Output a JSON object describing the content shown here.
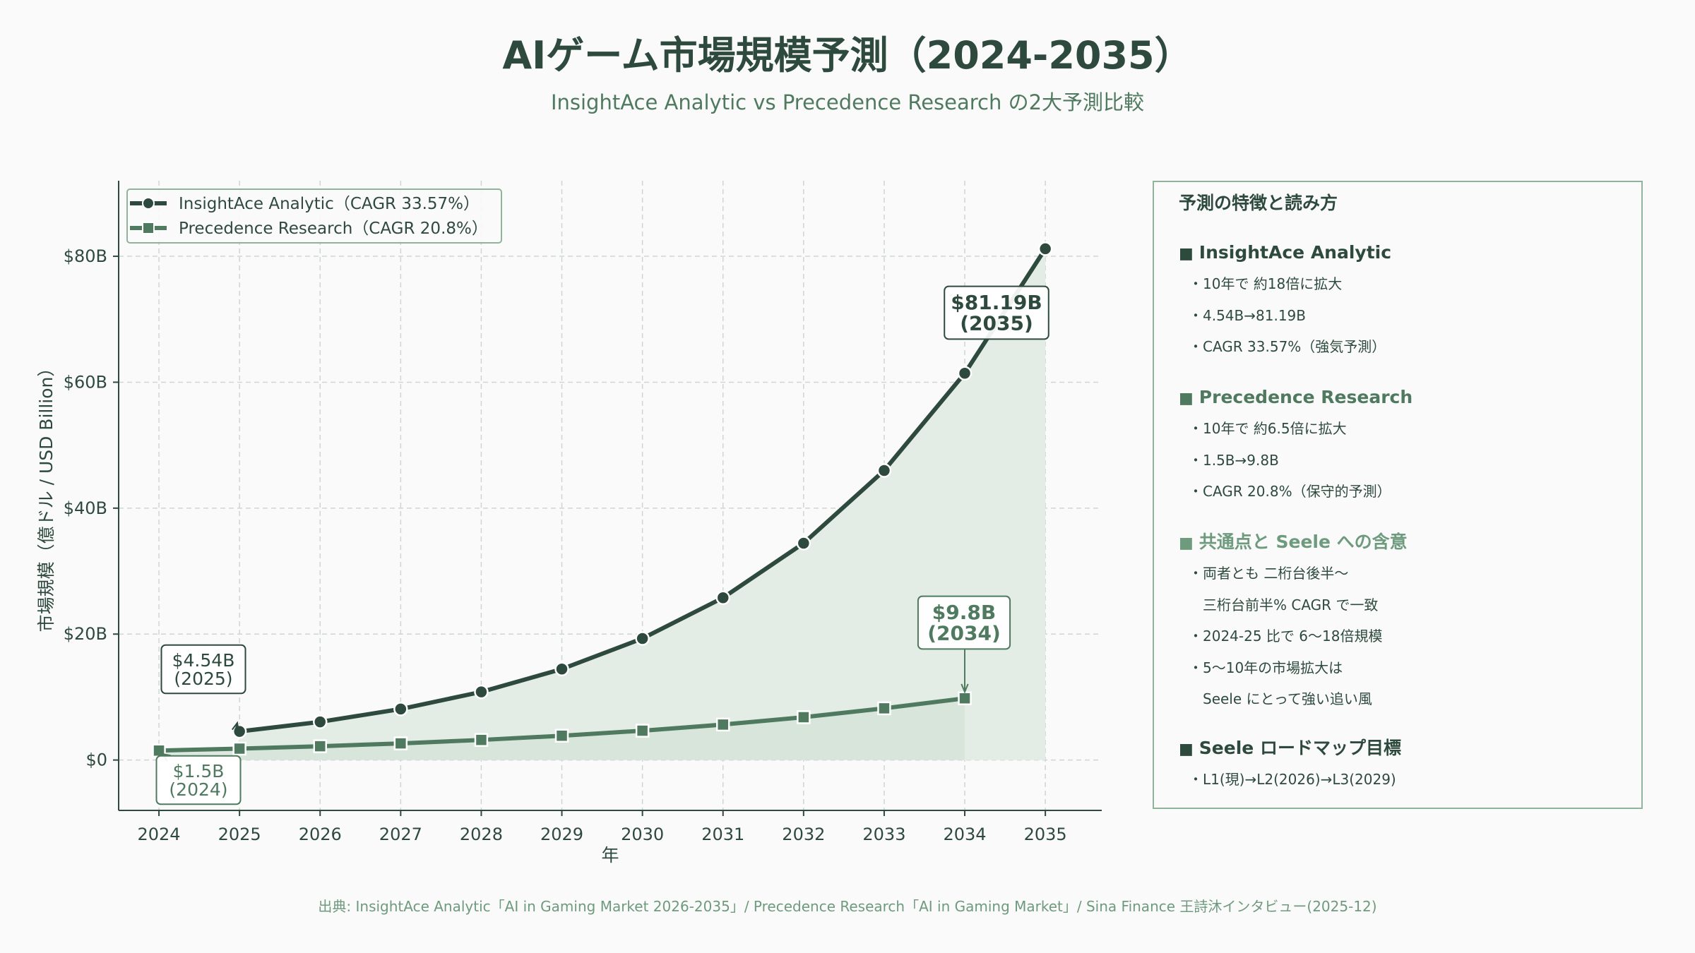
{
  "title": "AIゲーム市場規模予測（2024-2035）",
  "subtitle": "InsightAce Analytic vs Precedence Research の2大予測比較",
  "chart_data": {
    "type": "line",
    "x": [
      2024,
      2025,
      2026,
      2027,
      2028,
      2029,
      2030,
      2031,
      2032,
      2033,
      2034,
      2035
    ],
    "series": [
      {
        "name": "InsightAce Analytic（CAGR 33.57%）",
        "marker": "circle",
        "color": "#2e4a3e",
        "x": [
          2025,
          2026,
          2027,
          2028,
          2029,
          2030,
          2031,
          2032,
          2033,
          2034,
          2035
        ],
        "values": [
          4.54,
          6.06,
          8.1,
          10.82,
          14.45,
          19.3,
          25.77,
          34.43,
          45.98,
          61.42,
          81.19
        ]
      },
      {
        "name": "Precedence Research（CAGR 20.8%）",
        "marker": "square",
        "color": "#4f7a5f",
        "x": [
          2024,
          2025,
          2026,
          2027,
          2028,
          2029,
          2030,
          2031,
          2032,
          2033,
          2034
        ],
        "values": [
          1.5,
          1.81,
          2.19,
          2.64,
          3.19,
          3.86,
          4.66,
          5.63,
          6.8,
          8.21,
          9.8
        ]
      }
    ],
    "xlabel": "年",
    "ylabel": "市場規模（億ドル / USD Billion）",
    "ylim": [
      -8,
      92
    ],
    "yticks": [
      0,
      20,
      40,
      60,
      80
    ],
    "ytick_labels": [
      "$0",
      "$20B",
      "$40B",
      "$60B",
      "$80B"
    ],
    "grid": true,
    "legend_position": "top-left",
    "annotations": [
      {
        "series": 0,
        "x": 2025,
        "y": 4.54,
        "lines": [
          "$4.54B",
          "(2025)"
        ],
        "style": "normal"
      },
      {
        "series": 0,
        "x": 2035,
        "y": 81.19,
        "lines": [
          "$81.19B",
          "(2035)"
        ],
        "style": "bold"
      },
      {
        "series": 1,
        "x": 2024,
        "y": 1.5,
        "lines": [
          "$1.5B",
          "(2024)"
        ],
        "style": "normal"
      },
      {
        "series": 1,
        "x": 2034,
        "y": 9.8,
        "lines": [
          "$9.8B",
          "(2034)"
        ],
        "style": "bold"
      }
    ]
  },
  "panel": {
    "heading": "予測の特徴と読み方",
    "sections": [
      {
        "title": "InsightAce Analytic",
        "color": "#2e4a3e",
        "items": [
          "・10年で 約18倍に拡大",
          "・4.54B→81.19B",
          "・CAGR 33.57%（強気予測）"
        ]
      },
      {
        "title": "Precedence Research",
        "color": "#4f7a5f",
        "items": [
          "・10年で 約6.5倍に拡大",
          "・1.5B→9.8B",
          "・CAGR 20.8%（保守的予測）"
        ]
      },
      {
        "title": "共通点と Seele への含意",
        "color": "#6e9a7e",
        "items": [
          "・両者とも 二桁台後半〜",
          "　三桁台前半% CAGR で一致",
          "・2024-25 比で 6〜18倍規模",
          "・5〜10年の市場拡大は",
          "　Seele にとって強い追い風"
        ]
      },
      {
        "title": "Seele ロードマップ目標",
        "color": "#2e4a3e",
        "items": [
          "・L1(現)→L2(2026)→L3(2029)"
        ]
      }
    ]
  },
  "footer": "出典: InsightAce Analytic「AI in Gaming Market 2026-2035」/ Precedence Research「AI in Gaming Market」/ Sina Finance 王詩沐インタビュー(2025-12)"
}
